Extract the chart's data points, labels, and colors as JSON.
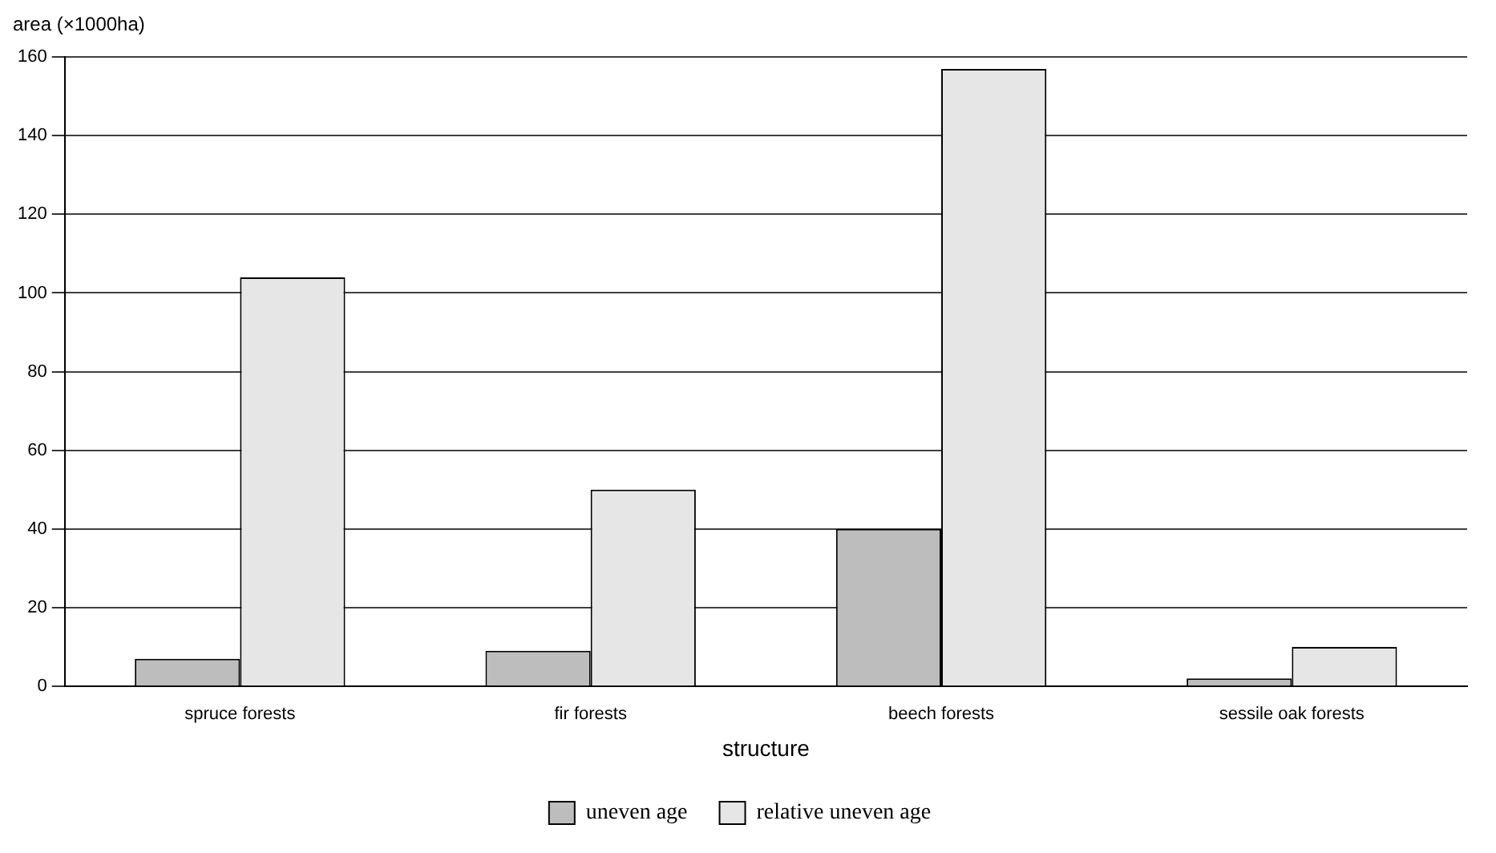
{
  "chart_data": {
    "type": "bar",
    "ylabel": "area (×1000ha)",
    "xlabel": "structure",
    "categories": [
      "spruce forests",
      "fir forests",
      "beech forests",
      "sessile oak forests"
    ],
    "series": [
      {
        "name": "uneven age",
        "color": "#bdbdbd",
        "values": [
          7,
          9,
          40,
          2
        ]
      },
      {
        "name": "relative uneven age",
        "color": "#e6e6e6",
        "values": [
          104,
          50,
          157,
          10
        ]
      }
    ],
    "ylim": [
      0,
      160
    ],
    "yticks": [
      0,
      20,
      40,
      60,
      80,
      100,
      120,
      140,
      160
    ],
    "grid": "y",
    "legend": "bottom"
  }
}
